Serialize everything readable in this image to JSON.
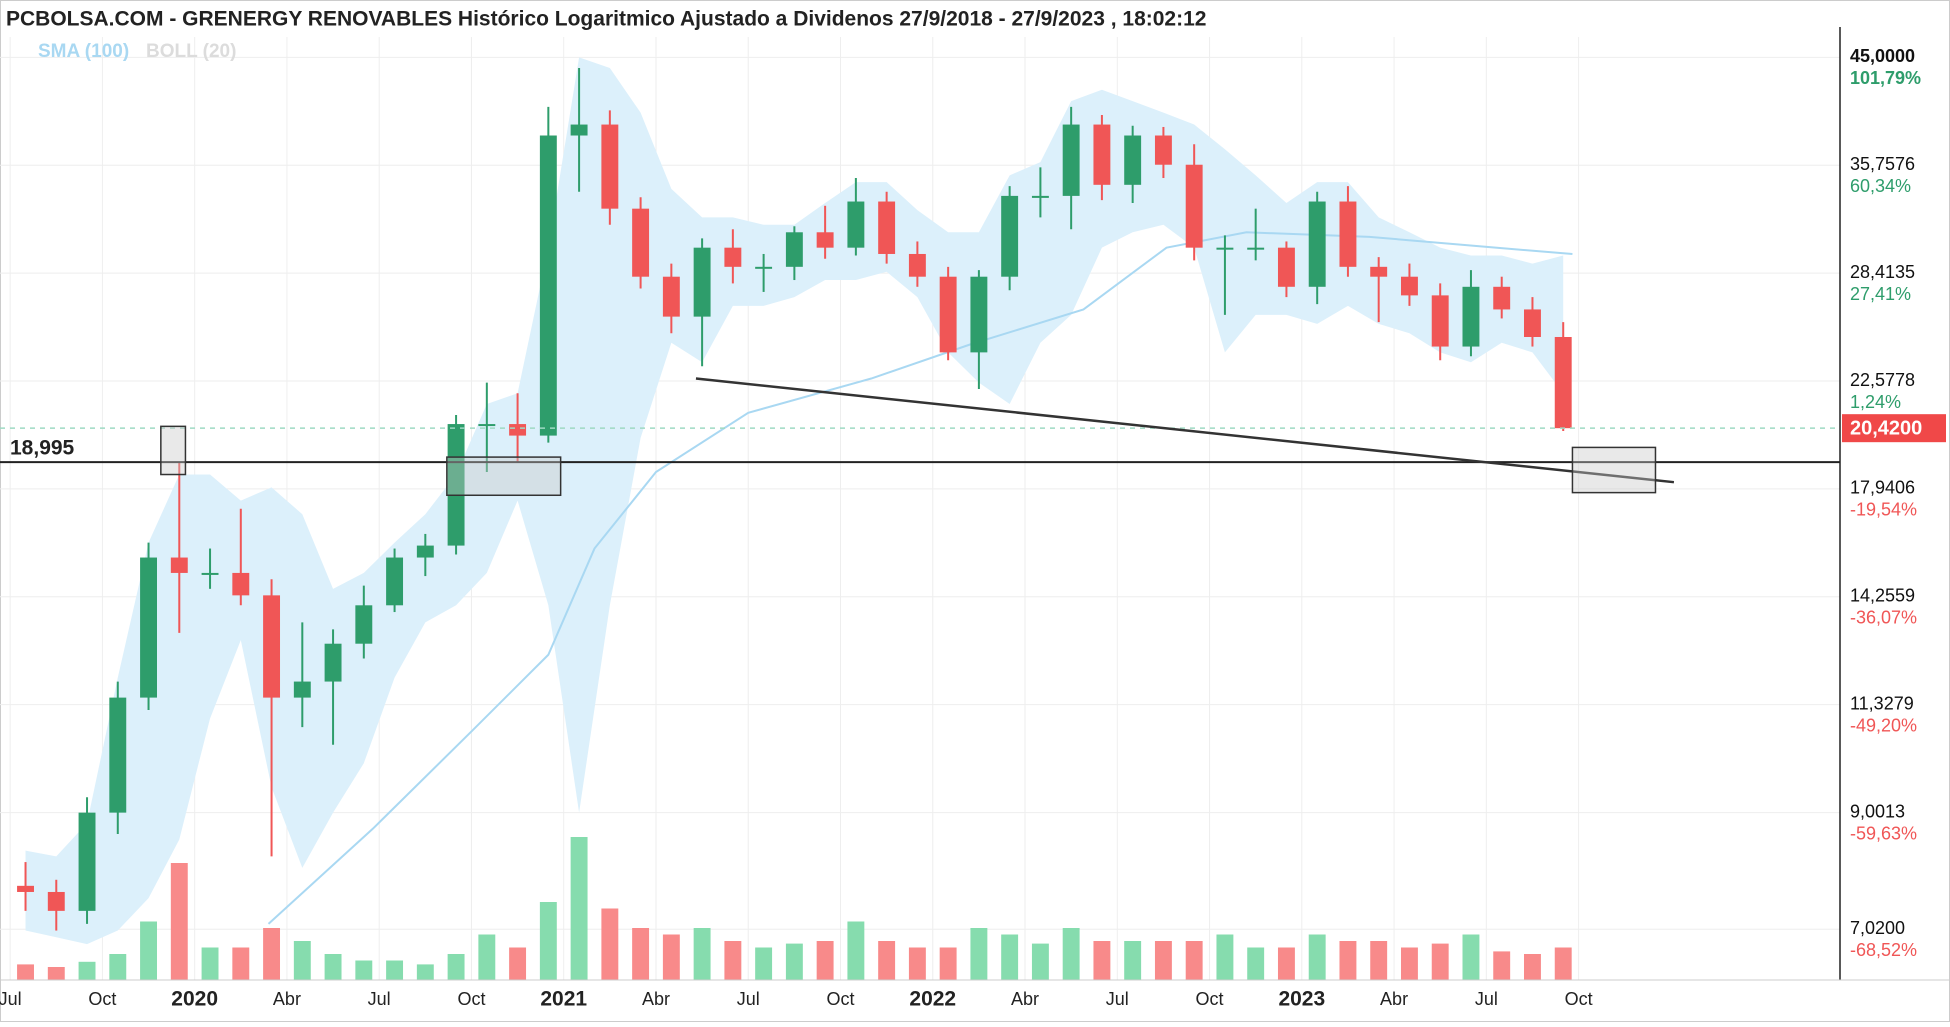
{
  "chart_data": {
    "type": "candlestick",
    "title": "PCBOLSA.COM - GRENERGY RENOVABLES Histórico Logaritmico Ajustado a Dividenos 27/9/2018 - 27/9/2023 , 18:02:12",
    "log_scale": true,
    "grid": true,
    "xlim": [
      -0.33,
      59.5
    ],
    "ylim": [
      6.3,
      47
    ],
    "xticks": [
      {
        "value": 0,
        "label": "Jul"
      },
      {
        "value": 3,
        "label": "Oct"
      },
      {
        "value": 6,
        "label": "2020"
      },
      {
        "value": 9,
        "label": "Abr"
      },
      {
        "value": 12,
        "label": "Jul"
      },
      {
        "value": 15,
        "label": "Oct"
      },
      {
        "value": 18,
        "label": "2021"
      },
      {
        "value": 21,
        "label": "Abr"
      },
      {
        "value": 24,
        "label": "Jul"
      },
      {
        "value": 27,
        "label": "Oct"
      },
      {
        "value": 30,
        "label": "2022"
      },
      {
        "value": 33,
        "label": "Abr"
      },
      {
        "value": 36,
        "label": "Jul"
      },
      {
        "value": 39,
        "label": "Oct"
      },
      {
        "value": 42,
        "label": "2023"
      },
      {
        "value": 45,
        "label": "Abr"
      },
      {
        "value": 48,
        "label": "Jul"
      },
      {
        "value": 51,
        "label": "Oct"
      }
    ],
    "yticks": [
      {
        "value": 45,
        "label": "45,0000"
      },
      {
        "value": 35.7576,
        "label": "35,7576"
      },
      {
        "value": 28.4135,
        "label": "28,4135"
      },
      {
        "value": 22.5778,
        "label": "22,5778"
      },
      {
        "value": 17.9406,
        "label": "17,9406"
      },
      {
        "value": 14.2559,
        "label": "14,2559"
      },
      {
        "value": 11.3279,
        "label": "11,3279"
      },
      {
        "value": 9.0013,
        "label": "9,0013"
      },
      {
        "value": 7.02,
        "label": "7,0200"
      }
    ],
    "ytick_pct": [
      {
        "value": 101.79,
        "label": "101,79%"
      },
      {
        "value": 60.34,
        "label": "60,34%"
      },
      {
        "value": 27.41,
        "label": "27,41%"
      },
      {
        "value": 1.24,
        "label": "1,24%"
      },
      {
        "value": -19.54,
        "label": "-19,54%"
      },
      {
        "value": -36.07,
        "label": "-36,07%"
      },
      {
        "value": -49.2,
        "label": "-49,20%"
      },
      {
        "value": -59.63,
        "label": "-59,63%"
      },
      {
        "value": -68.52,
        "label": "-68,52%"
      }
    ],
    "up_color": "#2e9d6b",
    "down_color": "#f05656",
    "x": [
      0.5,
      1.5,
      2.5,
      3.5,
      4.5,
      5.5,
      6.5,
      7.5,
      8.5,
      9.5,
      10.5,
      11.5,
      12.5,
      13.5,
      14.5,
      15.5,
      16.5,
      17.5,
      18.5,
      19.5,
      20.5,
      21.5,
      22.5,
      23.5,
      24.5,
      25.5,
      26.5,
      27.5,
      28.5,
      29.5,
      30.5,
      31.5,
      32.5,
      33.5,
      34.5,
      35.5,
      36.5,
      37.5,
      38.5,
      39.5,
      40.5,
      41.5,
      42.5,
      43.5,
      44.5,
      45.5,
      46.5,
      47.5,
      48.5,
      49.5,
      50.5
    ],
    "open": [
      7.7,
      7.6,
      7.3,
      9.0,
      11.5,
      15.5,
      15.0,
      15.0,
      14.3,
      11.5,
      11.9,
      12.9,
      14.0,
      15.5,
      15.9,
      20.6,
      20.6,
      20.1,
      38.1,
      39.0,
      32.6,
      28.2,
      25.9,
      30.0,
      28.8,
      28.8,
      31.0,
      30.0,
      33.1,
      29.6,
      28.2,
      24.0,
      28.2,
      33.5,
      33.5,
      39.0,
      34.3,
      38.1,
      35.8,
      30.0,
      30.0,
      30.0,
      27.6,
      33.1,
      28.8,
      28.2,
      27.1,
      24.3,
      27.6,
      26.3,
      24.8
    ],
    "high": [
      8.1,
      7.8,
      9.3,
      11.9,
      16.0,
      19.0,
      15.8,
      17.2,
      14.8,
      13.5,
      13.3,
      14.6,
      15.8,
      16.3,
      21.0,
      22.5,
      22.0,
      40.5,
      44.0,
      40.2,
      33.4,
      29.0,
      30.6,
      31.2,
      29.6,
      31.4,
      32.8,
      34.8,
      33.8,
      30.4,
      28.8,
      28.6,
      34.2,
      35.6,
      40.5,
      39.8,
      38.9,
      38.8,
      37.4,
      30.8,
      32.6,
      30.4,
      33.8,
      34.2,
      29.4,
      29.0,
      27.8,
      28.6,
      28.2,
      27.0,
      25.6
    ],
    "low": [
      7.3,
      7.0,
      7.1,
      8.6,
      11.2,
      13.2,
      14.5,
      14.0,
      8.2,
      10.8,
      10.4,
      12.5,
      13.8,
      14.9,
      15.6,
      18.6,
      19.0,
      19.8,
      33.8,
      31.5,
      27.5,
      25.0,
      23.3,
      27.8,
      27.3,
      28.0,
      29.3,
      29.5,
      29.0,
      27.6,
      23.6,
      22.2,
      27.4,
      32.0,
      31.2,
      33.2,
      33.0,
      34.8,
      29.2,
      26.0,
      29.2,
      27.0,
      26.6,
      28.2,
      25.6,
      26.5,
      23.6,
      23.8,
      25.8,
      24.3,
      20.3
    ],
    "close": [
      7.6,
      7.3,
      9.0,
      11.5,
      15.5,
      15.0,
      15.0,
      14.3,
      11.5,
      11.9,
      12.9,
      14.0,
      15.5,
      15.9,
      20.6,
      20.6,
      20.1,
      38.1,
      39.0,
      32.6,
      28.2,
      25.9,
      30.0,
      28.8,
      28.8,
      31.0,
      30.0,
      33.1,
      29.6,
      28.2,
      24.0,
      28.2,
      33.5,
      33.5,
      39.0,
      34.3,
      38.1,
      35.8,
      30.0,
      30.0,
      30.0,
      27.6,
      33.1,
      28.8,
      28.2,
      27.1,
      24.3,
      27.6,
      26.3,
      24.8,
      20.42
    ],
    "volume": [
      12,
      10,
      14,
      20,
      45,
      90,
      25,
      25,
      40,
      30,
      20,
      15,
      15,
      12,
      20,
      35,
      25,
      60,
      110,
      55,
      40,
      35,
      40,
      30,
      25,
      28,
      30,
      45,
      30,
      25,
      25,
      40,
      35,
      28,
      40,
      30,
      30,
      30,
      30,
      35,
      25,
      25,
      35,
      30,
      30,
      25,
      28,
      35,
      22,
      20,
      25
    ],
    "series": [
      {
        "name": "SMA (100)",
        "color": "#a9d8f2",
        "x": [
          8.4,
          11.8,
          15,
          17.5,
          19,
          21,
          24,
          28,
          31.2,
          34.9,
          37.6,
          40.2,
          44.2,
          48.3,
          50.8
        ],
        "values": [
          7.1,
          8.7,
          10.7,
          12.6,
          15.8,
          18.6,
          21.1,
          22.7,
          24.4,
          26.3,
          30,
          31,
          30.7,
          30,
          29.6
        ]
      },
      {
        "name": "BOLL (20)",
        "color": "#dcdcdc",
        "fill": "#dcf0fb",
        "upper": [
          8.3,
          8.2,
          8.8,
          12.0,
          16.0,
          18.5,
          18.5,
          17.5,
          18.0,
          17.0,
          14.5,
          15.0,
          16.0,
          17.0,
          18.5,
          21.5,
          22.0,
          30.0,
          45.0,
          44.0,
          40.0,
          34.0,
          32.0,
          32.0,
          31.5,
          31.5,
          33.0,
          34.5,
          34.5,
          32.5,
          31.0,
          31.0,
          35.0,
          36.0,
          41.0,
          42.0,
          41.0,
          40.0,
          39.0,
          37.0,
          35.0,
          33.0,
          34.5,
          34.5,
          32.0,
          31.0,
          30.0,
          29.5,
          29.5,
          29.0,
          29.5
        ],
        "lower": [
          7.0,
          6.9,
          6.8,
          7.0,
          7.5,
          8.5,
          11.0,
          13.0,
          9.5,
          8.0,
          9.0,
          10.0,
          12.0,
          13.5,
          14.0,
          15.0,
          17.5,
          14.0,
          9.0,
          14.0,
          20.0,
          24.5,
          23.5,
          26.5,
          26.5,
          27.0,
          28.0,
          28.0,
          28.5,
          27.0,
          24.0,
          22.5,
          21.5,
          24.5,
          26.0,
          30.0,
          31.0,
          31.5,
          30.0,
          24.0,
          26.0,
          26.0,
          25.5,
          26.5,
          25.5,
          25.0,
          24.0,
          23.5,
          24.5,
          24.0,
          22.0
        ]
      }
    ],
    "support_level": {
      "value": 18.995,
      "label": "18,995"
    },
    "last_price": {
      "value": 20.42,
      "label": "20,4200"
    },
    "trendline": {
      "x": [
        22.3,
        54.1
      ],
      "values": [
        22.7,
        18.2
      ]
    },
    "boxes": [
      {
        "x": [
          4.9,
          5.7
        ],
        "y": [
          18.5,
          20.5
        ]
      },
      {
        "x": [
          14.2,
          17.9
        ],
        "y": [
          17.7,
          19.2
        ]
      },
      {
        "x": [
          50.8,
          53.5
        ],
        "y": [
          17.8,
          19.6
        ]
      }
    ]
  }
}
